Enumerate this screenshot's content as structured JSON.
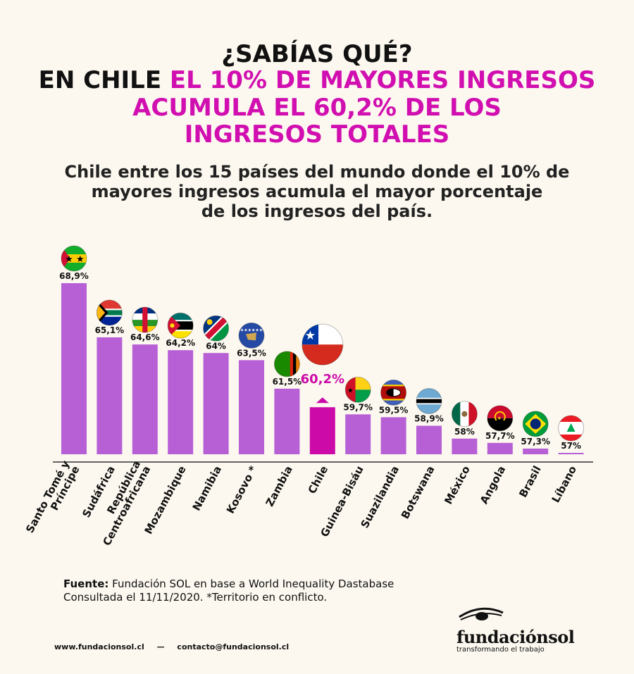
{
  "header": {
    "line1": "¿SABÍAS QUÉ?",
    "line2_dark": "EN CHILE ",
    "line2_accent": "EL 10%  DE MAYORES INGRESOS",
    "line3": "ACUMULA EL 60,2% DE LOS",
    "line4": "INGRESOS TOTALES"
  },
  "subtitle": {
    "line1": "Chile entre los 15 países del mundo donde el 10% de",
    "line2": "mayores ingresos acumula el mayor porcentaje",
    "line3": "de los ingresos del país."
  },
  "chart_data": {
    "type": "bar",
    "categories": [
      "Santo Tomé y Príncipe",
      "Sudáfrica",
      "República Centroafricana",
      "Mozambique",
      "Namibia",
      "Kosovo *",
      "Zambia",
      "Chile",
      "Guinea-Bisáu",
      "Suazilandia",
      "Botswana",
      "México",
      "Angola",
      "Brasil",
      "Líbano"
    ],
    "values": [
      68.9,
      65.1,
      64.6,
      64.2,
      64,
      63.5,
      61.5,
      60.2,
      59.7,
      59.5,
      58.9,
      58,
      57.7,
      57.3,
      57
    ],
    "value_labels": [
      "68,9%",
      "65,1%",
      "64,6%",
      "64,2%",
      "64%",
      "63,5%",
      "61,5%",
      "60,2%",
      "59,7%",
      "59,5%",
      "58,9%",
      "58%",
      "57,7%",
      "57,3%",
      "57%"
    ],
    "label_lines": [
      [
        "Santo Tomé y",
        "Príncipe"
      ],
      [
        "Sudáfrica"
      ],
      [
        "República",
        "Centroafricana"
      ],
      [
        "Mozambique"
      ],
      [
        "Namibia"
      ],
      [
        "Kosovo *"
      ],
      [
        "Zambia"
      ],
      [
        "Chile"
      ],
      [
        "Guinea-Bisáu"
      ],
      [
        "Suazilandia"
      ],
      [
        "Botswana"
      ],
      [
        "México"
      ],
      [
        "Angola"
      ],
      [
        "Brasil"
      ],
      [
        "Líbano"
      ]
    ],
    "flags": [
      "sao-tome-flag",
      "south-africa-flag",
      "car-flag",
      "mozambique-flag",
      "namibia-flag",
      "kosovo-flag",
      "zambia-flag",
      "chile-flag",
      "guinea-bissau-flag",
      "eswatini-flag",
      "botswana-flag",
      "mexico-flag",
      "angola-flag",
      "brazil-flag",
      "lebanon-flag"
    ],
    "highlight": "Chile",
    "title": "",
    "xlabel": "",
    "ylabel": "",
    "grid": false,
    "colors": {
      "bar": "#b760d6",
      "highlight": "#cc0aa8"
    }
  },
  "source": {
    "label": "Fuente:",
    "text": " Fundación SOL en base a World Inequality Dastabase",
    "line2": "Consultada el 11/11/2020. *Territorio en conflicto."
  },
  "footer": {
    "website": "www.fundacionsol.cl",
    "separator": "—",
    "email": "contacto@fundacionsol.cl"
  },
  "logo": {
    "name": "fundaciónsol",
    "tagline": "transformando el trabajo"
  }
}
